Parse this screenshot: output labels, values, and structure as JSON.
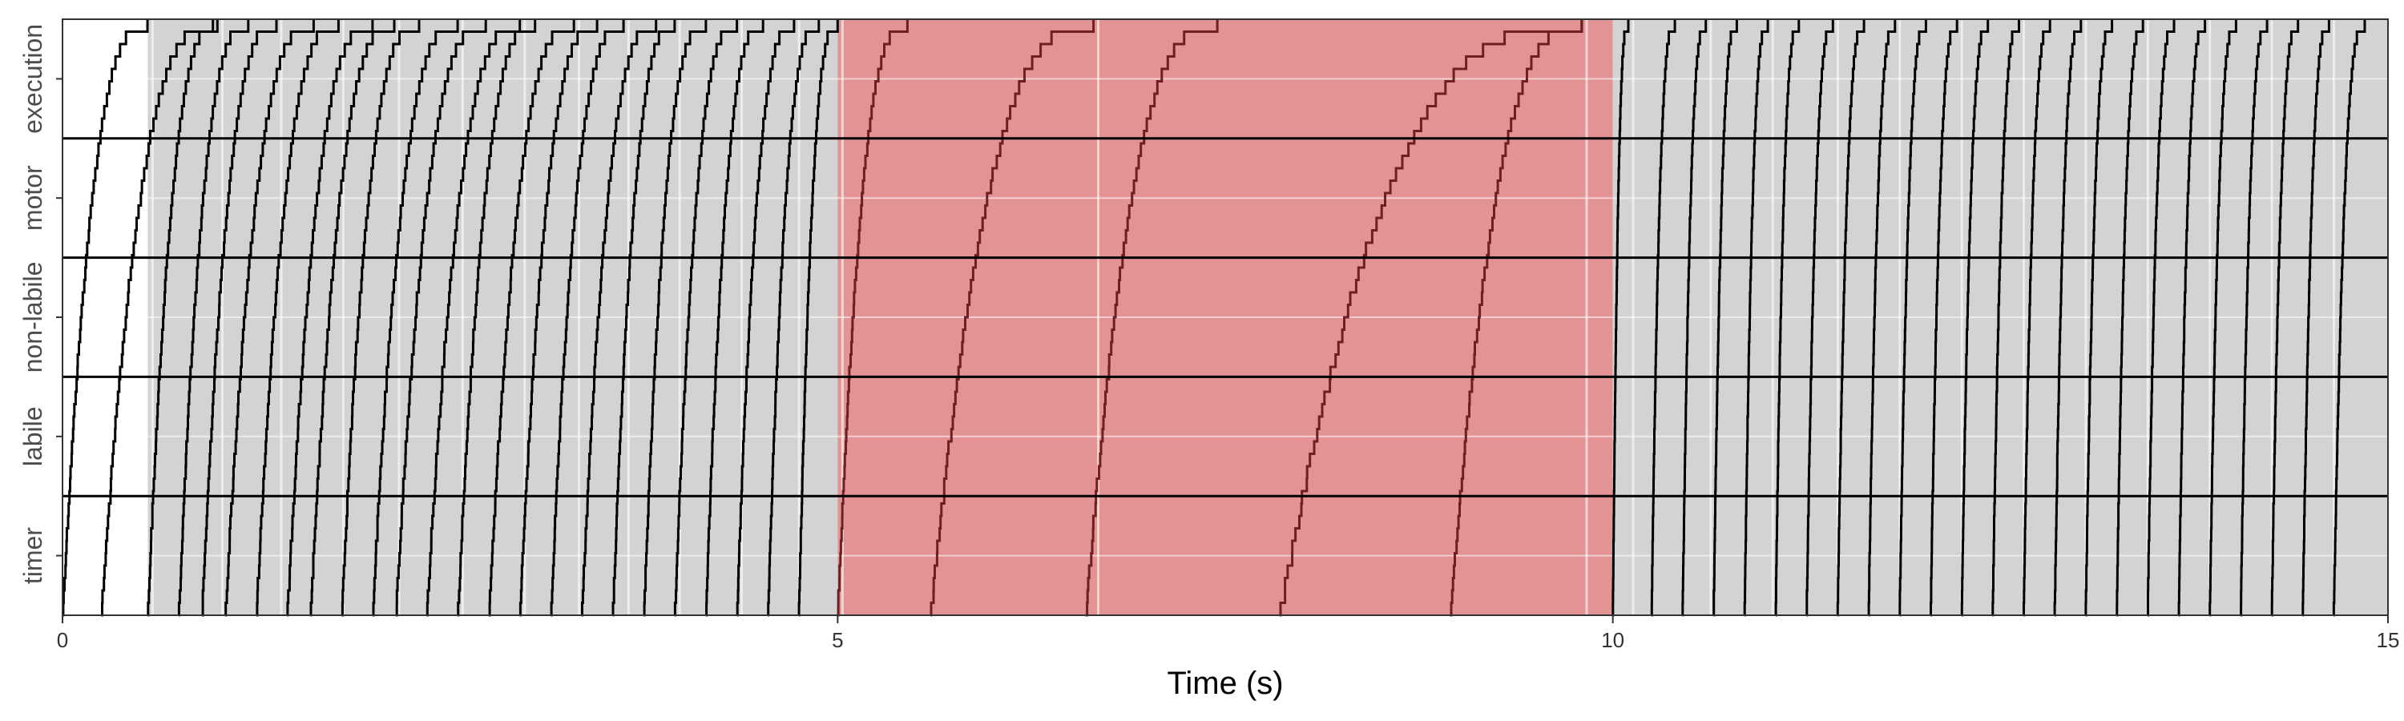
{
  "chart_data": {
    "type": "line",
    "xlabel": "Time (s)",
    "ylabel": "",
    "xlim": [
      0,
      15
    ],
    "ylim": [
      0,
      5
    ],
    "x_ticks": [
      0,
      5,
      10,
      15
    ],
    "rows": [
      "timer",
      "labile",
      "non-labile",
      "motor",
      "execution"
    ],
    "grid": true,
    "shaded_regions": [
      {
        "x0": 0.55,
        "x1": 5.0,
        "fill": "#d3d3d3"
      },
      {
        "x0": 5.0,
        "x1": 10.0,
        "fill": "#e39394"
      },
      {
        "x0": 10.0,
        "x1": 15.0,
        "fill": "#d3d3d3"
      }
    ],
    "trace_groups": [
      {
        "color": "#000000",
        "timer_start": [
          0.0,
          0.25,
          0.55,
          0.75,
          0.9,
          1.05,
          1.25,
          1.45,
          1.6,
          1.8,
          2.0,
          2.15,
          2.35,
          2.55,
          2.75,
          2.95,
          3.15,
          3.35,
          3.55,
          3.75,
          3.95,
          4.15,
          4.35,
          4.55,
          4.75
        ],
        "execution_end": [
          0.55,
          0.97,
          1.0,
          1.2,
          1.38,
          1.62,
          1.78,
          2.0,
          2.14,
          2.3,
          2.55,
          2.73,
          2.95,
          3.05,
          3.3,
          3.45,
          3.62,
          3.83,
          3.95,
          4.15,
          4.35,
          4.52,
          4.72,
          4.88,
          5.0
        ]
      },
      {
        "color": "#6e1f22",
        "timer_start": [
          5.0,
          5.6,
          6.6,
          7.85,
          8.95
        ],
        "execution_end": [
          5.45,
          6.65,
          7.45,
          9.8,
          9.8
        ]
      },
      {
        "color": "#000000",
        "timer_start": [
          10.0,
          10.25,
          10.45,
          10.65,
          10.85,
          11.05,
          11.25,
          11.45,
          11.65,
          11.85,
          12.05,
          12.25,
          12.45,
          12.65,
          12.85,
          13.05,
          13.25,
          13.45,
          13.65,
          13.85,
          14.05,
          14.25,
          14.45,
          14.65
        ],
        "execution_end": [
          10.1,
          10.4,
          10.6,
          10.8,
          11.0,
          11.2,
          11.42,
          11.62,
          11.82,
          12.02,
          12.22,
          12.42,
          12.62,
          12.82,
          13.02,
          13.22,
          13.42,
          13.62,
          13.82,
          14.02,
          14.22,
          14.42,
          14.62,
          14.85
        ]
      }
    ]
  }
}
